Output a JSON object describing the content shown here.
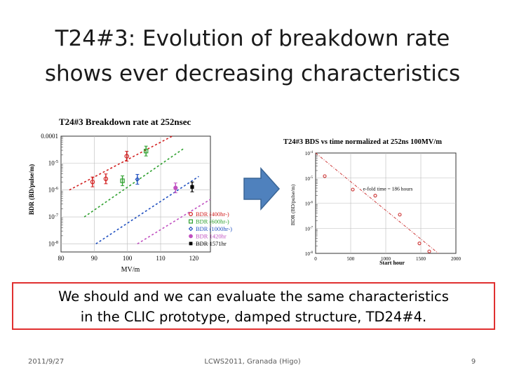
{
  "slide": {
    "title_line1": "T24#3: Evolution of breakdown rate",
    "title_line2": "shows ever decreasing characteristics",
    "callout_line1": "We should and we can evaluate the same characteristics",
    "callout_line2": "in the CLIC prototype, damped structure, TD24#4.",
    "footer_date": "2011/9/27",
    "footer_center": "LCWS2011, Granada (Higo)",
    "footer_page": "9",
    "arrow_icon": "right-arrow-icon",
    "arrow_color": "#4f81bd",
    "callout_border_color": "#e03030"
  },
  "chart_data": [
    {
      "type": "scatter",
      "title": "T24#3 Breakdown rate at 252nsec",
      "xlabel": "MV/m",
      "ylabel": "BDR (BD/pulse/m)",
      "xlim": [
        80,
        125
      ],
      "x_ticks": [
        80,
        90,
        100,
        110,
        120
      ],
      "x_tick_labels": [
        "80",
        "90",
        "100",
        "110",
        "120"
      ],
      "y_scale": "log",
      "ylim": [
        5e-09,
        0.0001
      ],
      "y_ticks": [
        0.0001,
        1e-05,
        1e-06,
        1e-07,
        1e-08
      ],
      "y_tick_labels": [
        "0.0001",
        "10-5",
        "10-6",
        "10-7",
        "10-8"
      ],
      "grid": true,
      "legend_position": "bottom-right",
      "series": [
        {
          "name": "BDR (400hr-)",
          "color": "#d22020",
          "marker": "circle-open",
          "points": [
            [
              89.5,
              2e-06
            ],
            [
              93.5,
              2.6e-06
            ],
            [
              99.8,
              1.8e-05
            ]
          ],
          "fit": [
            [
              82.5,
              1e-06
            ],
            [
              113.5,
              0.0001
            ]
          ]
        },
        {
          "name": "BDR (600hr-)",
          "color": "#2ea02e",
          "marker": "square-open",
          "points": [
            [
              98.5,
              2.2e-06
            ],
            [
              105.6,
              2.8e-05
            ]
          ],
          "fit": [
            [
              87,
              1e-07
            ],
            [
              117,
              3.5e-05
            ]
          ]
        },
        {
          "name": "BDR (1000hr-)",
          "color": "#2050c0",
          "marker": "diamond-open",
          "points": [
            [
              103.0,
              2.5e-06
            ]
          ],
          "fit": [
            [
              90.5,
              1e-08
            ],
            [
              121.5,
              3.2e-06
            ]
          ]
        },
        {
          "name": "BDR 1420hr",
          "color": "#c050c0",
          "marker": "circle-filled",
          "points": [
            [
              114.5,
              1.2e-06
            ]
          ],
          "fit": [
            [
              103,
              1e-08
            ],
            [
              125,
              4.5e-07
            ]
          ]
        },
        {
          "name": "BDR 1571hr",
          "color": "#000000",
          "marker": "square-filled",
          "points": [
            [
              119.5,
              1.3e-06
            ]
          ],
          "fit": []
        }
      ]
    },
    {
      "type": "scatter",
      "title": "T24#3 BDS vs time normalized at 252ns 100MV/m",
      "xlabel": "Start hour",
      "ylabel": "BDR (BD/pulse/m)",
      "xlim": [
        0,
        2000
      ],
      "x_ticks": [
        0,
        500,
        1000,
        1500,
        2000
      ],
      "x_tick_labels": [
        "0",
        "500",
        "1000",
        "1500",
        "2000"
      ],
      "y_scale": "log",
      "ylim": [
        1e-08,
        0.0001
      ],
      "y_ticks": [
        0.0001,
        1e-05,
        1e-06,
        1e-07,
        1e-08
      ],
      "y_tick_labels": [
        "10-4",
        "10-5",
        "10-6",
        "10-7",
        "10-8"
      ],
      "grid": true,
      "annotation": "e-fold time = 186 hours",
      "series": [
        {
          "color": "#d04040",
          "marker": "circle-open",
          "points": [
            [
              130,
              1.2e-05
            ],
            [
              530,
              3.5e-06
            ],
            [
              850,
              2e-06
            ],
            [
              1200,
              3.5e-07
            ],
            [
              1480,
              2.5e-08
            ],
            [
              1620,
              1.2e-08
            ]
          ],
          "fit": [
            [
              0,
              0.0001
            ],
            [
              1750,
              1e-08
            ]
          ]
        }
      ]
    }
  ]
}
